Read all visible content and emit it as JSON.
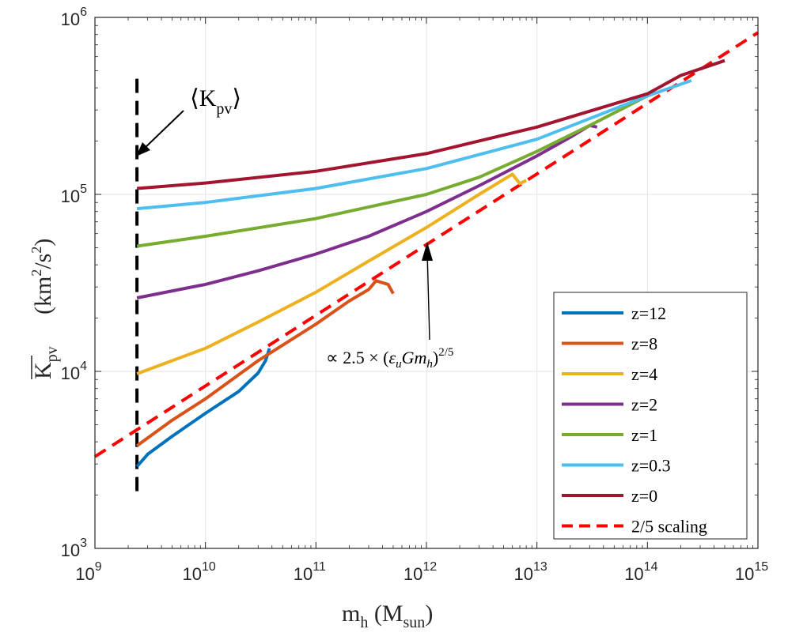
{
  "chart_data": {
    "type": "line",
    "x_scale": "log",
    "y_scale": "log",
    "xlim": [
      1000000000.0,
      1000000000000000.0
    ],
    "ylim": [
      1000,
      1000000
    ],
    "grid": true,
    "legend_position": "bottom-right",
    "x_ticks": [
      {
        "value": 1000000000.0,
        "base": "10",
        "exp": "9"
      },
      {
        "value": 10000000000.0,
        "base": "10",
        "exp": "10"
      },
      {
        "value": 100000000000.0,
        "base": "10",
        "exp": "11"
      },
      {
        "value": 1000000000000.0,
        "base": "10",
        "exp": "12"
      },
      {
        "value": 10000000000000.0,
        "base": "10",
        "exp": "13"
      },
      {
        "value": 100000000000000.0,
        "base": "10",
        "exp": "14"
      },
      {
        "value": 1000000000000000.0,
        "base": "10",
        "exp": "15"
      }
    ],
    "y_ticks": [
      {
        "value": 1000,
        "base": "10",
        "exp": "3"
      },
      {
        "value": 10000,
        "base": "10",
        "exp": "4"
      },
      {
        "value": 100000,
        "base": "10",
        "exp": "5"
      },
      {
        "value": 1000000,
        "base": "10",
        "exp": "6"
      }
    ],
    "xlabel": {
      "main": "m",
      "sub1": "h",
      "paren_open": " (M",
      "sub2": "sun",
      "paren_close": ")"
    },
    "ylabel": {
      "main": "K",
      "sub": "pv",
      "units_open": "(km",
      "units_sup": "2",
      "units_mid": "/s",
      "units_sup2": "2",
      "units_close": ")"
    },
    "series": [
      {
        "name": "z=12",
        "color": "#0072BD",
        "x": [
          2400000000.0,
          3000000000.0,
          5000000000.0,
          10000000000.0,
          20000000000.0,
          30000000000.0,
          35000000000.0,
          38000000000.0
        ],
        "y": [
          2900,
          3400,
          4300,
          5800,
          7700,
          9800,
          11500,
          13500
        ]
      },
      {
        "name": "z=8",
        "color": "#D95319",
        "x": [
          2400000000.0,
          5000000000.0,
          10000000000.0,
          30000000000.0,
          100000000000.0,
          200000000000.0,
          300000000000.0,
          350000000000.0,
          450000000000.0,
          500000000000.0
        ],
        "y": [
          3800,
          5300,
          7000,
          11500,
          18500,
          25000,
          29000,
          32500,
          31000,
          27500
        ]
      },
      {
        "name": "z=4",
        "color": "#EDB120",
        "x": [
          2400000000.0,
          10000000000.0,
          30000000000.0,
          100000000000.0,
          300000000000.0,
          1000000000000.0,
          3000000000000.0,
          6000000000000.0,
          7000000000000.0,
          8000000000000.0
        ],
        "y": [
          9700,
          13500,
          19000,
          28000,
          42000,
          65000,
          100000,
          130000,
          115000,
          120000
        ]
      },
      {
        "name": "z=2",
        "color": "#7E2F8E",
        "x": [
          2400000000.0,
          10000000000.0,
          30000000000.0,
          100000000000.0,
          300000000000.0,
          1000000000000.0,
          3000000000000.0,
          10000000000000.0,
          20000000000000.0,
          30000000000000.0,
          35000000000000.0
        ],
        "y": [
          26000,
          31000,
          37000,
          46000,
          58000,
          80000,
          112000,
          165000,
          210000,
          245000,
          240000
        ]
      },
      {
        "name": "z=1",
        "color": "#77AC30",
        "x": [
          2400000000.0,
          10000000000.0,
          100000000000.0,
          1000000000000.0,
          3000000000000.0,
          10000000000000.0,
          30000000000000.0,
          100000000000000.0
        ],
        "y": [
          51000,
          58000,
          73000,
          100000,
          125000,
          175000,
          245000,
          360000
        ]
      },
      {
        "name": "z=0.3",
        "color": "#4DBEEE",
        "x": [
          2400000000.0,
          10000000000.0,
          100000000000.0,
          1000000000000.0,
          10000000000000.0,
          100000000000000.0,
          250000000000000.0
        ],
        "y": [
          83000,
          90000,
          108000,
          140000,
          205000,
          360000,
          440000
        ]
      },
      {
        "name": "z=0",
        "color": "#A2142F",
        "x": [
          2400000000.0,
          10000000000.0,
          100000000000.0,
          1000000000000.0,
          10000000000000.0,
          100000000000000.0,
          200000000000000.0,
          500000000000000.0
        ],
        "y": [
          108000,
          116000,
          135000,
          170000,
          240000,
          370000,
          470000,
          570000
        ]
      }
    ],
    "reference_line": {
      "name": "2/5 scaling",
      "color": "#FF0000",
      "x": [
        1000000000.0,
        1000000000000000.0
      ],
      "y": [
        3300,
        820000
      ]
    },
    "vertical_marker": {
      "x": 2400000000.0,
      "y_range": [
        2000,
        450000
      ],
      "color": "#000000"
    },
    "annotations": {
      "kpv_label": {
        "open": "⟨",
        "main": "K",
        "sub": "pv",
        "close": "⟩"
      },
      "scaling_label": {
        "prefix": "∝ 2.5 × (",
        "eps": "ε",
        "eps_sub": "u",
        "mid": "Gm",
        "m_sub": "h",
        "close": ")",
        "exponent": "2/5"
      }
    }
  }
}
